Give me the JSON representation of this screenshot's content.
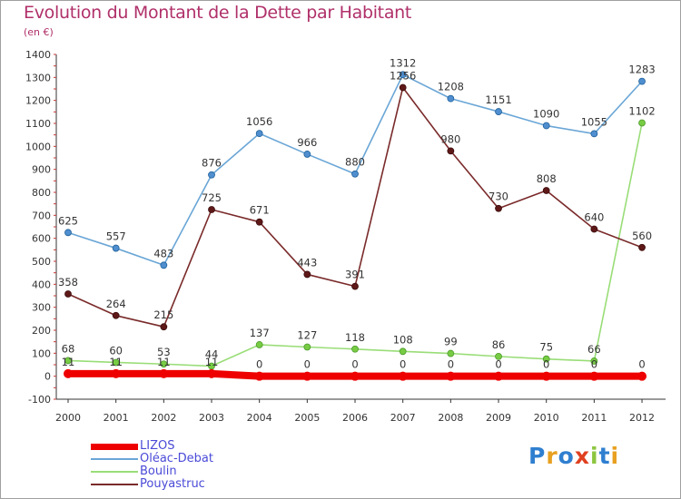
{
  "title": "Evolution du Montant de la Dette par Habitant",
  "subtitle": "(en €)",
  "logo": {
    "text": "Proxiti",
    "colors": [
      "#2f7fd0",
      "#e8a020",
      "#2f7fd0",
      "#e04020",
      "#8cc63f",
      "#2f7fd0",
      "#e8a020"
    ]
  },
  "chart_data": {
    "type": "line",
    "x": [
      "2000",
      "2001",
      "2002",
      "2003",
      "2004",
      "2005",
      "2006",
      "2007",
      "2008",
      "2009",
      "2010",
      "2011",
      "2012"
    ],
    "ylim": [
      -100,
      1400
    ],
    "yticks": [
      "-100",
      "0",
      "100",
      "200",
      "300",
      "400",
      "500",
      "600",
      "700",
      "800",
      "900",
      "1000",
      "1100",
      "1200",
      "1300",
      "1400"
    ],
    "grid": false,
    "legend_position": "bottom-left",
    "series": [
      {
        "name": "LIZOS",
        "color": "#ee0000",
        "values": [
          11,
          11,
          11,
          11,
          0,
          0,
          0,
          0,
          0,
          0,
          0,
          0,
          0
        ],
        "labels": [
          "11",
          "11",
          "11",
          "11",
          "0",
          "0",
          "0",
          "0",
          "0",
          "0",
          "0",
          "0",
          "0"
        ]
      },
      {
        "name": "Oléac-Debat",
        "color": "#6aa6d6",
        "values": [
          625,
          557,
          483,
          876,
          1056,
          966,
          880,
          1312,
          1208,
          1151,
          1090,
          1055,
          1283
        ],
        "labels": [
          "625",
          "557",
          "483",
          "876",
          "1056",
          "966",
          "880",
          "1312",
          "1208",
          "1151",
          "1090",
          "1055",
          "1283"
        ]
      },
      {
        "name": "Boulin",
        "color": "#99dd77",
        "values": [
          68,
          60,
          53,
          44,
          137,
          127,
          118,
          108,
          99,
          86,
          75,
          66,
          1102
        ],
        "labels": [
          "68",
          "60",
          "53",
          "44",
          "137",
          "127",
          "118",
          "108",
          "99",
          "86",
          "75",
          "66",
          "1102"
        ]
      },
      {
        "name": "Pouyastruc",
        "color": "#7a2a2a",
        "values": [
          358,
          264,
          215,
          725,
          671,
          443,
          391,
          1256,
          980,
          730,
          808,
          640,
          560
        ],
        "labels": [
          "358",
          "264",
          "215",
          "725",
          "671",
          "443",
          "391",
          "1256",
          "980",
          "730",
          "808",
          "640",
          "560"
        ]
      }
    ]
  }
}
